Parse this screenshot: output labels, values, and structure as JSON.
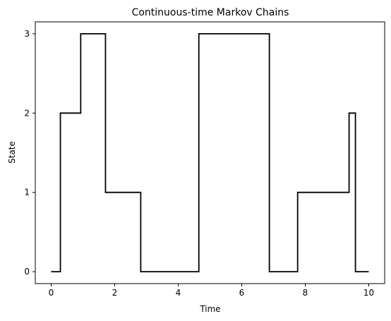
{
  "chart_data": {
    "type": "line",
    "step": true,
    "title": "Continuous-time Markov Chains",
    "xlabel": "Time",
    "ylabel": "State",
    "xlim": [
      -0.5,
      10.5
    ],
    "ylim": [
      -0.15,
      3.15
    ],
    "xticks": [
      0,
      2,
      4,
      6,
      8,
      10
    ],
    "yticks": [
      0,
      1,
      2,
      3
    ],
    "grid": false,
    "line_color": "#000000",
    "series": [
      {
        "jump_times": [
          0.0,
          0.29,
          0.93,
          1.71,
          2.82,
          4.65,
          6.87,
          7.76,
          9.38,
          9.58,
          10.0
        ],
        "states": [
          0,
          2,
          3,
          1,
          0,
          3,
          0,
          1,
          2,
          0
        ]
      }
    ]
  }
}
